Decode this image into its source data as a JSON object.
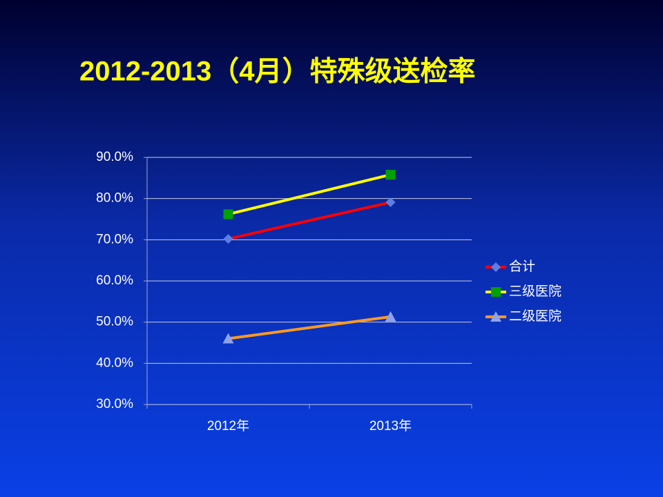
{
  "chart_data": {
    "type": "line",
    "title": "2012-2013（4月）特殊级送检率",
    "categories": [
      "2012年",
      "2013年"
    ],
    "series": [
      {
        "name": "合计",
        "color": "#ff0000",
        "marker": "diamond",
        "marker_color": "#5b7fe6",
        "values": [
          70.2,
          79.1
        ]
      },
      {
        "name": "三级医院",
        "color": "#ffff00",
        "marker": "square",
        "marker_color": "#00a000",
        "values": [
          76.2,
          85.8
        ]
      },
      {
        "name": "二级医院",
        "color": "#ff9a20",
        "marker": "triangle",
        "marker_color": "#8fa3ec",
        "values": [
          46.0,
          51.3
        ]
      }
    ],
    "ylim": [
      30,
      90
    ],
    "yticks": [
      {
        "value": 30,
        "label": "30.0%"
      },
      {
        "value": 40,
        "label": "40.0%"
      },
      {
        "value": 50,
        "label": "50.0%"
      },
      {
        "value": 60,
        "label": "60.0%"
      },
      {
        "value": 70,
        "label": "70.0%"
      },
      {
        "value": 80,
        "label": "80.0%"
      },
      {
        "value": 90,
        "label": "90.0%"
      }
    ],
    "grid": true,
    "legend": "right"
  }
}
